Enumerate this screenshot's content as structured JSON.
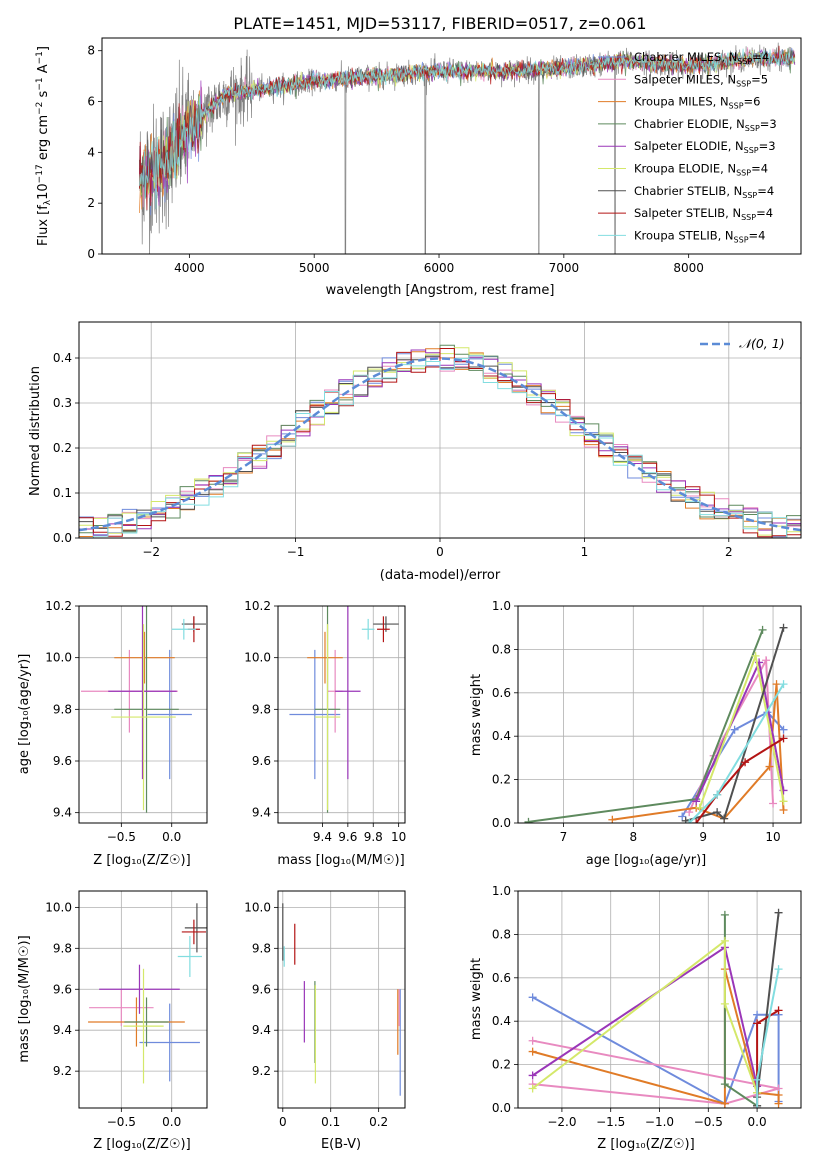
{
  "figure": {
    "title": "PLATE=1451, MJD=53117, FIBERID=0517, z=0.061"
  },
  "colors": {
    "Chabrier MILES": "#6f8bdc",
    "Salpeter MILES": "#e88ac0",
    "Kroupa MILES": "#e07b27",
    "Chabrier ELODIE": "#5e8a5e",
    "Salpeter ELODIE": "#9a36b8",
    "Kroupa ELODIE": "#d4e86a",
    "Chabrier STELIB": "#505050",
    "Salpeter STELIB": "#b31414",
    "Kroupa STELIB": "#82dde0",
    "data": "#808080",
    "normal": "#5b8bd6"
  },
  "chart_data": [
    {
      "id": "spectrum",
      "type": "line",
      "xlabel": "wavelength [Angstrom, rest frame]",
      "ylabel": "Flux [f_λ 10⁻¹⁷ erg cm⁻² s⁻¹ A⁻¹]",
      "xlim": [
        3300,
        8900
      ],
      "ylim": [
        0,
        8.5
      ],
      "xticks": [
        4000,
        5000,
        6000,
        7000,
        8000
      ],
      "yticks": [
        0,
        2,
        4,
        6,
        8
      ],
      "legend": [
        {
          "label": "Chabrier MILES, N",
          "sub": "SSP",
          "tail": "=4"
        },
        {
          "label": "Salpeter MILES, N",
          "sub": "SSP",
          "tail": "=5"
        },
        {
          "label": "Kroupa MILES, N",
          "sub": "SSP",
          "tail": "=6"
        },
        {
          "label": "Chabrier ELODIE, N",
          "sub": "SSP",
          "tail": "=3"
        },
        {
          "label": "Salpeter ELODIE, N",
          "sub": "SSP",
          "tail": "=3"
        },
        {
          "label": "Kroupa ELODIE, N",
          "sub": "SSP",
          "tail": "=4"
        },
        {
          "label": "Chabrier STELIB, N",
          "sub": "SSP",
          "tail": "=4"
        },
        {
          "label": "Salpeter STELIB, N",
          "sub": "SSP",
          "tail": "=4"
        },
        {
          "label": "Kroupa STELIB, N",
          "sub": "SSP",
          "tail": "=4"
        }
      ],
      "legend_position": "upper right",
      "data_trend": {
        "x": [
          3600,
          3800,
          4000,
          4300,
          4600,
          5000,
          5500,
          6000,
          6500,
          7000,
          7500,
          8000,
          8500,
          8850
        ],
        "y": [
          3.0,
          3.5,
          5.0,
          6.3,
          6.5,
          6.8,
          7.0,
          7.2,
          7.2,
          7.3,
          7.6,
          7.4,
          7.7,
          7.7
        ]
      },
      "grid": false
    },
    {
      "id": "residuals",
      "type": "area",
      "xlabel": "(data-model)/error",
      "ylabel": "Normed distribution",
      "xlim": [
        -2.5,
        2.5
      ],
      "ylim": [
        0,
        0.48
      ],
      "xticks": [
        -2,
        -1,
        0,
        1,
        2
      ],
      "xtick_labels": [
        "−2",
        "−1",
        "0",
        "1",
        "2"
      ],
      "yticks": [
        0.0,
        0.1,
        0.2,
        0.3,
        0.4
      ],
      "legend": [
        "𝒩(0, 1)"
      ],
      "legend_position": "upper right",
      "grid": true
    },
    {
      "id": "age_vs_Z",
      "type": "scatter",
      "xlabel": "Z [log₁₀(Z/Z☉)]",
      "ylabel": "age  [log₁₀(age/yr)]",
      "xlim": [
        -0.92,
        0.35
      ],
      "ylim": [
        9.36,
        10.2
      ],
      "xticks": [
        -0.5,
        0.0
      ],
      "xtick_labels": [
        "−0.5",
        "0.0"
      ],
      "yticks": [
        9.4,
        9.6,
        9.8,
        10.0,
        10.2
      ],
      "grid": true,
      "points": [
        {
          "model": "Chabrier MILES",
          "x": -0.02,
          "y": 9.78,
          "xerr": 0.22,
          "yerr": 0.25
        },
        {
          "model": "Salpeter MILES",
          "x": -0.42,
          "y": 9.87,
          "xerr": 0.48,
          "yerr": 0.16
        },
        {
          "model": "Kroupa MILES",
          "x": -0.27,
          "y": 10.0,
          "xerr": 0.3,
          "yerr": 0.1
        },
        {
          "model": "Chabrier ELODIE",
          "x": -0.25,
          "y": 9.8,
          "xerr": 0.32,
          "yerr": 0.4
        },
        {
          "model": "Salpeter ELODIE",
          "x": -0.29,
          "y": 9.87,
          "xerr": 0.34,
          "yerr": 0.34
        },
        {
          "model": "Kroupa ELODIE",
          "x": -0.28,
          "y": 9.77,
          "xerr": 0.32,
          "yerr": 0.36
        },
        {
          "model": "Chabrier STELIB",
          "x": 0.22,
          "y": 10.13,
          "xerr": 0.12,
          "yerr": 0.03
        },
        {
          "model": "Salpeter STELIB",
          "x": 0.22,
          "y": 10.11,
          "xerr": 0.06,
          "yerr": 0.05
        },
        {
          "model": "Kroupa STELIB",
          "x": 0.12,
          "y": 10.11,
          "xerr": 0.12,
          "yerr": 0.04
        }
      ]
    },
    {
      "id": "age_vs_mass",
      "type": "scatter",
      "xlabel": "mass [log₁₀(M/M☉)]",
      "ylabel": "",
      "xlim": [
        9.05,
        10.05
      ],
      "ylim": [
        9.36,
        10.2
      ],
      "xticks": [
        9.4,
        9.6,
        9.8,
        10.0
      ],
      "yticks": [
        9.4,
        9.6,
        9.8,
        10.0,
        10.2
      ],
      "grid": true,
      "points": [
        {
          "model": "Chabrier MILES",
          "x": 9.34,
          "y": 9.78,
          "xerr": 0.2,
          "yerr": 0.25
        },
        {
          "model": "Salpeter MILES",
          "x": 9.5,
          "y": 9.87,
          "xerr": 0.06,
          "yerr": 0.16
        },
        {
          "model": "Kroupa MILES",
          "x": 9.42,
          "y": 10.0,
          "xerr": 0.14,
          "yerr": 0.1
        },
        {
          "model": "Chabrier ELODIE",
          "x": 9.44,
          "y": 9.8,
          "xerr": 0.1,
          "yerr": 0.4
        },
        {
          "model": "Salpeter ELODIE",
          "x": 9.6,
          "y": 9.87,
          "xerr": 0.1,
          "yerr": 0.34
        },
        {
          "model": "Kroupa ELODIE",
          "x": 9.44,
          "y": 9.77,
          "xerr": 0.1,
          "yerr": 0.36
        },
        {
          "model": "Chabrier STELIB",
          "x": 9.9,
          "y": 10.13,
          "xerr": 0.1,
          "yerr": 0.03
        },
        {
          "model": "Salpeter STELIB",
          "x": 9.88,
          "y": 10.11,
          "xerr": 0.05,
          "yerr": 0.05
        },
        {
          "model": "Kroupa STELIB",
          "x": 9.76,
          "y": 10.11,
          "xerr": 0.05,
          "yerr": 0.04
        }
      ]
    },
    {
      "id": "weight_vs_age",
      "type": "line",
      "xlabel": "age  [log₁₀(age/yr)]",
      "ylabel": "mass weight",
      "xlim": [
        6.35,
        10.4
      ],
      "ylim": [
        0,
        1.0
      ],
      "xticks": [
        7,
        8,
        9,
        10
      ],
      "yticks": [
        0.0,
        0.2,
        0.4,
        0.6,
        0.8,
        1.0
      ],
      "grid": true,
      "series": [
        {
          "model": "Chabrier MILES",
          "x": [
            8.7,
            9.45,
            9.92,
            10.15
          ],
          "y": [
            0.03,
            0.43,
            0.51,
            0.43
          ]
        },
        {
          "model": "Salpeter MILES",
          "x": [
            8.8,
            9.15,
            9.9,
            10.0
          ],
          "y": [
            0.05,
            0.31,
            0.75,
            0.09
          ]
        },
        {
          "model": "Kroupa MILES",
          "x": [
            7.7,
            8.9,
            9.3,
            9.95,
            10.05,
            10.15
          ],
          "y": [
            0.015,
            0.07,
            0.02,
            0.26,
            0.64,
            0.06
          ]
        },
        {
          "model": "Chabrier ELODIE",
          "x": [
            6.5,
            8.9,
            9.85
          ],
          "y": [
            0.005,
            0.11,
            0.89
          ]
        },
        {
          "model": "Salpeter ELODIE",
          "x": [
            8.9,
            9.8,
            10.15
          ],
          "y": [
            0.1,
            0.74,
            0.15
          ]
        },
        {
          "model": "Kroupa ELODIE",
          "x": [
            8.95,
            9.75,
            10.15
          ],
          "y": [
            0.07,
            0.77,
            0.1
          ]
        },
        {
          "model": "Chabrier STELIB",
          "x": [
            8.75,
            9.2,
            9.3,
            10.15
          ],
          "y": [
            0.01,
            0.05,
            0.02,
            0.9
          ]
        },
        {
          "model": "Salpeter STELIB",
          "x": [
            8.9,
            9.2,
            9.6,
            10.15
          ],
          "y": [
            0.0,
            0.13,
            0.28,
            0.39
          ]
        },
        {
          "model": "Kroupa STELIB",
          "x": [
            8.8,
            9.2,
            10.15
          ],
          "y": [
            0.0,
            0.13,
            0.64
          ]
        }
      ]
    },
    {
      "id": "mass_vs_Z",
      "type": "scatter",
      "xlabel": "Z [log₁₀(Z/Z☉)]",
      "ylabel": "mass [log₁₀(M/M☉)]",
      "xlim": [
        -0.92,
        0.35
      ],
      "ylim": [
        9.02,
        10.08
      ],
      "xticks": [
        -0.5,
        0.0
      ],
      "xtick_labels": [
        "−0.5",
        "0.0"
      ],
      "yticks": [
        9.2,
        9.4,
        9.6,
        9.8,
        10.0
      ],
      "grid": true,
      "points": [
        {
          "model": "Chabrier MILES",
          "x": -0.02,
          "y": 9.34,
          "xerr": 0.3,
          "yerr": 0.19
        },
        {
          "model": "Salpeter MILES",
          "x": -0.5,
          "y": 9.51,
          "xerr": 0.32,
          "yerr": 0.09
        },
        {
          "model": "Kroupa MILES",
          "x": -0.35,
          "y": 9.44,
          "xerr": 0.48,
          "yerr": 0.12
        },
        {
          "model": "Chabrier ELODIE",
          "x": -0.25,
          "y": 9.44,
          "xerr": 0.22,
          "yerr": 0.12
        },
        {
          "model": "Salpeter ELODIE",
          "x": -0.32,
          "y": 9.6,
          "xerr": 0.4,
          "yerr": 0.12
        },
        {
          "model": "Kroupa ELODIE",
          "x": -0.28,
          "y": 9.42,
          "xerr": 0.2,
          "yerr": 0.28
        },
        {
          "model": "Chabrier STELIB",
          "x": 0.25,
          "y": 9.9,
          "xerr": 0.12,
          "yerr": 0.12
        },
        {
          "model": "Salpeter STELIB",
          "x": 0.22,
          "y": 9.88,
          "xerr": 0.12,
          "yerr": 0.06
        },
        {
          "model": "Kroupa STELIB",
          "x": 0.18,
          "y": 9.76,
          "xerr": 0.12,
          "yerr": 0.1
        }
      ]
    },
    {
      "id": "mass_vs_ebv",
      "type": "scatter",
      "xlabel": "E(B-V)",
      "ylabel": "",
      "xlim": [
        -0.01,
        0.255
      ],
      "ylim": [
        9.02,
        10.08
      ],
      "xticks": [
        0.0,
        0.1,
        0.2
      ],
      "yticks": [
        9.2,
        9.4,
        9.6,
        9.8,
        10.0
      ],
      "grid": true,
      "points": [
        {
          "model": "Chabrier MILES",
          "x": 0.245,
          "y": 9.34,
          "xerr": 0,
          "yerr": 0.26
        },
        {
          "model": "Salpeter MILES",
          "x": 0.243,
          "y": 9.51,
          "xerr": 0,
          "yerr": 0.09
        },
        {
          "model": "Kroupa MILES",
          "x": 0.24,
          "y": 9.44,
          "xerr": 0,
          "yerr": 0.16
        },
        {
          "model": "Chabrier ELODIE",
          "x": 0.067,
          "y": 9.44,
          "xerr": 0,
          "yerr": 0.2
        },
        {
          "model": "Salpeter ELODIE",
          "x": 0.045,
          "y": 9.49,
          "xerr": 0,
          "yerr": 0.15
        },
        {
          "model": "Kroupa ELODIE",
          "x": 0.068,
          "y": 9.38,
          "xerr": 0,
          "yerr": 0.24
        },
        {
          "model": "Chabrier STELIB",
          "x": 0.0,
          "y": 9.88,
          "xerr": 0,
          "yerr": 0.14
        },
        {
          "model": "Salpeter STELIB",
          "x": 0.025,
          "y": 9.82,
          "xerr": 0,
          "yerr": 0.1
        },
        {
          "model": "Kroupa STELIB",
          "x": 0.003,
          "y": 9.76,
          "xerr": 0,
          "yerr": 0.05
        }
      ]
    },
    {
      "id": "weight_vs_Z",
      "type": "line",
      "xlabel": "Z [log₁₀(Z/Z☉)]",
      "ylabel": "mass weight",
      "xlim": [
        -2.45,
        0.45
      ],
      "ylim": [
        0,
        1.0
      ],
      "xticks": [
        -2.0,
        -1.5,
        -1.0,
        -0.5,
        0.0
      ],
      "xtick_labels": [
        "−2.0",
        "−1.5",
        "−1.0",
        "−0.5",
        "0.0"
      ],
      "yticks": [
        0.0,
        0.2,
        0.4,
        0.6,
        0.8,
        1.0
      ],
      "grid": true,
      "series": [
        {
          "model": "Chabrier MILES",
          "x": [
            -2.3,
            -0.33,
            0.0,
            0.22,
            0.22
          ],
          "y": [
            0.51,
            0.02,
            0.43,
            0.43,
            0.03
          ]
        },
        {
          "model": "Salpeter MILES",
          "x": [
            -2.3,
            -0.33,
            0.22,
            -2.3
          ],
          "y": [
            0.11,
            0.02,
            0.09,
            0.31
          ]
        },
        {
          "model": "Kroupa MILES",
          "x": [
            -2.3,
            -0.33,
            -0.33,
            0.0,
            0.22,
            0.22
          ],
          "y": [
            0.26,
            0.02,
            0.64,
            0.07,
            0.06,
            0.02
          ]
        },
        {
          "model": "Chabrier ELODIE",
          "x": [
            -0.33,
            -0.33,
            0.0
          ],
          "y": [
            0.89,
            0.11,
            0.01
          ]
        },
        {
          "model": "Salpeter ELODIE",
          "x": [
            -2.3,
            -0.33,
            0.0
          ],
          "y": [
            0.15,
            0.74,
            0.1
          ]
        },
        {
          "model": "Kroupa ELODIE",
          "x": [
            -2.3,
            -0.33,
            -0.33,
            0.0
          ],
          "y": [
            0.09,
            0.77,
            0.48,
            0.07
          ]
        },
        {
          "model": "Chabrier STELIB",
          "x": [
            0.0,
            0.0,
            0.22
          ],
          "y": [
            0.01,
            0.05,
            0.9
          ]
        },
        {
          "model": "Salpeter STELIB",
          "x": [
            0.0,
            0.0,
            0.22
          ],
          "y": [
            0.0,
            0.39,
            0.45
          ]
        },
        {
          "model": "Kroupa STELIB",
          "x": [
            0.0,
            0.0,
            0.22
          ],
          "y": [
            0.0,
            0.13,
            0.64
          ]
        }
      ]
    }
  ]
}
